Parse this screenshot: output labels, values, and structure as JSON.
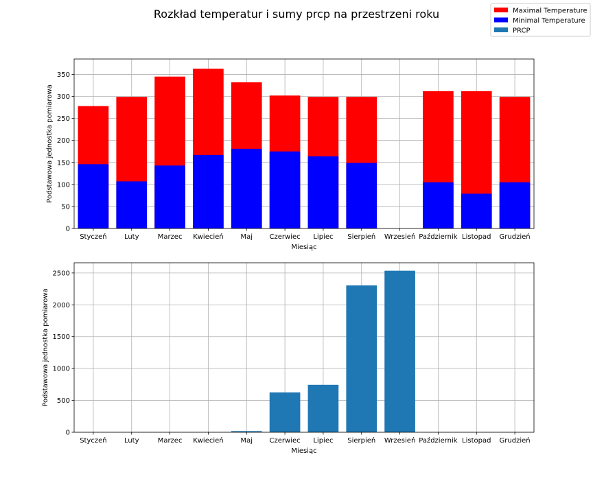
{
  "figure": {
    "title": "Rozkład temperatur i sumy prcp na przestrzeni roku"
  },
  "legend": {
    "placement": "top-right",
    "entries": [
      {
        "label": "Maximal Temperature",
        "color": "#ff0000"
      },
      {
        "label": "Minimal Temperature",
        "color": "#0000ff"
      },
      {
        "label": "PRCP",
        "color": "#1f77b4"
      }
    ]
  },
  "chart_data": [
    {
      "type": "bar",
      "stacked": false,
      "categories": [
        "Styczeń",
        "Luty",
        "Marzec",
        "Kwiecień",
        "Maj",
        "Czerwiec",
        "Lipiec",
        "Sierpień",
        "Wrzesień",
        "Październik",
        "Listopad",
        "Grudzień"
      ],
      "series": [
        {
          "name": "Maximal Temperature",
          "color": "#ff0000",
          "values": [
            278,
            299,
            345,
            363,
            332,
            302,
            299,
            299,
            null,
            312,
            312,
            299
          ]
        },
        {
          "name": "Minimal Temperature",
          "color": "#0000ff",
          "values": [
            146,
            107,
            143,
            167,
            181,
            175,
            164,
            149,
            null,
            105,
            79,
            105
          ]
        }
      ],
      "xlabel": "Miesiąc",
      "ylabel": "Podstawowa jednostka pomiarowa",
      "ylim": [
        0,
        385
      ],
      "yticks": [
        0,
        50,
        100,
        150,
        200,
        250,
        300,
        350
      ],
      "grid": true
    },
    {
      "type": "bar",
      "categories": [
        "Styczeń",
        "Luty",
        "Marzec",
        "Kwiecień",
        "Maj",
        "Czerwiec",
        "Lipiec",
        "Sierpień",
        "Wrzesień",
        "Październik",
        "Listopad",
        "Grudzień"
      ],
      "series": [
        {
          "name": "PRCP",
          "color": "#1f77b4",
          "values": [
            0,
            0,
            0,
            0,
            18,
            625,
            745,
            2305,
            2535,
            0,
            0,
            0
          ]
        }
      ],
      "xlabel": "Miesiąc",
      "ylabel": "Podstawowa jednostka pomiarowa",
      "ylim": [
        0,
        2660
      ],
      "yticks": [
        0,
        500,
        1000,
        1500,
        2000,
        2500
      ],
      "grid": true
    }
  ]
}
